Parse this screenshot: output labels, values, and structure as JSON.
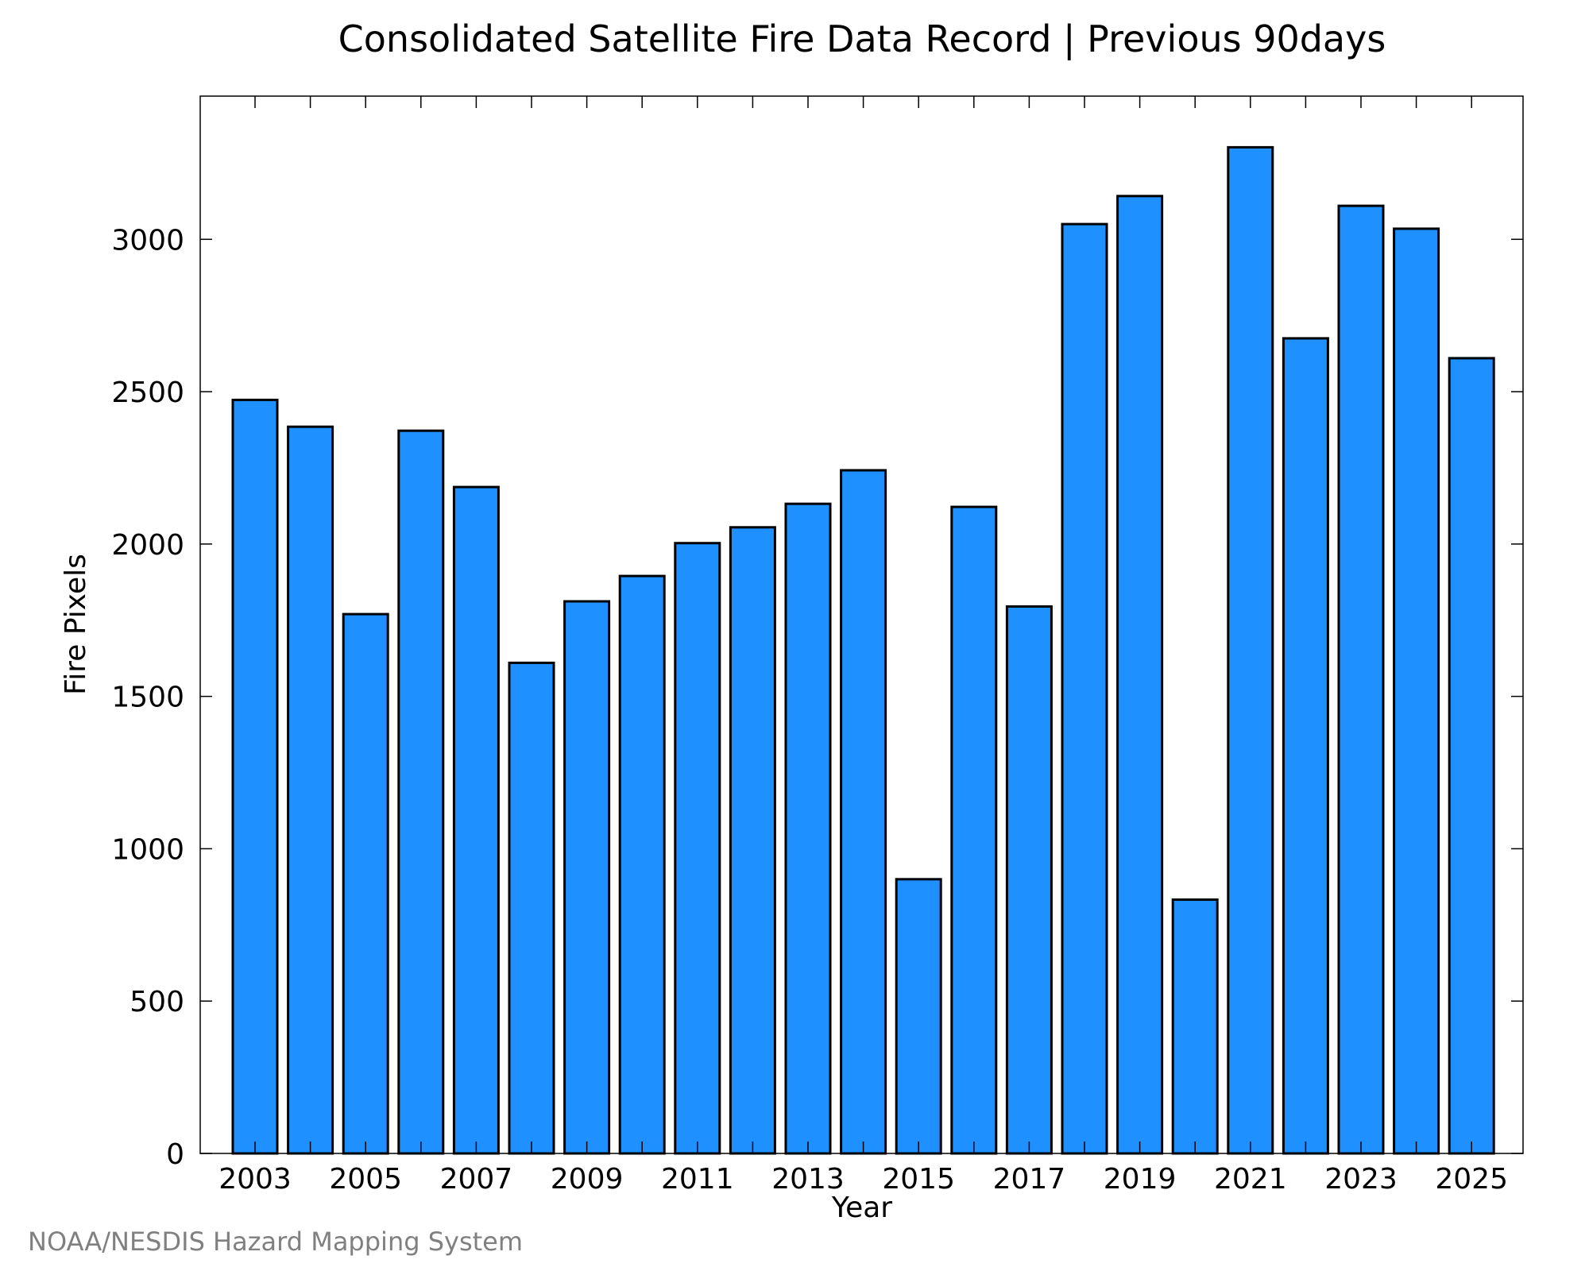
{
  "chart_data": {
    "type": "bar",
    "title": "Consolidated Satellite Fire Data Record | Previous 90days",
    "xlabel": "Year",
    "ylabel": "Fire Pixels",
    "categories": [
      "2003",
      "2004",
      "2005",
      "2006",
      "2007",
      "2008",
      "2009",
      "2010",
      "2011",
      "2012",
      "2013",
      "2014",
      "2015",
      "2016",
      "2017",
      "2018",
      "2019",
      "2020",
      "2021",
      "2022",
      "2023",
      "2024",
      "2025"
    ],
    "values": [
      2473,
      2385,
      1770,
      2372,
      2187,
      1610,
      1812,
      1895,
      2003,
      2055,
      2132,
      2242,
      900,
      2122,
      1795,
      3050,
      3142,
      833,
      3302,
      2675,
      3110,
      3035,
      2610
    ],
    "x_tick_labels": [
      "2003",
      "2005",
      "2007",
      "2009",
      "2011",
      "2013",
      "2015",
      "2017",
      "2019",
      "2021",
      "2023",
      "2025"
    ],
    "y_tick_labels": [
      "0",
      "500",
      "1000",
      "1500",
      "2000",
      "2500",
      "3000"
    ],
    "y_ticks": [
      0,
      500,
      1000,
      1500,
      2000,
      2500,
      3000
    ],
    "ylim": [
      0,
      3470
    ],
    "bar_color": "#1e90ff",
    "bar_edge_color": "#000000",
    "grid": false,
    "legend": "none"
  },
  "credit": "NOAA/NESDIS Hazard Mapping System"
}
